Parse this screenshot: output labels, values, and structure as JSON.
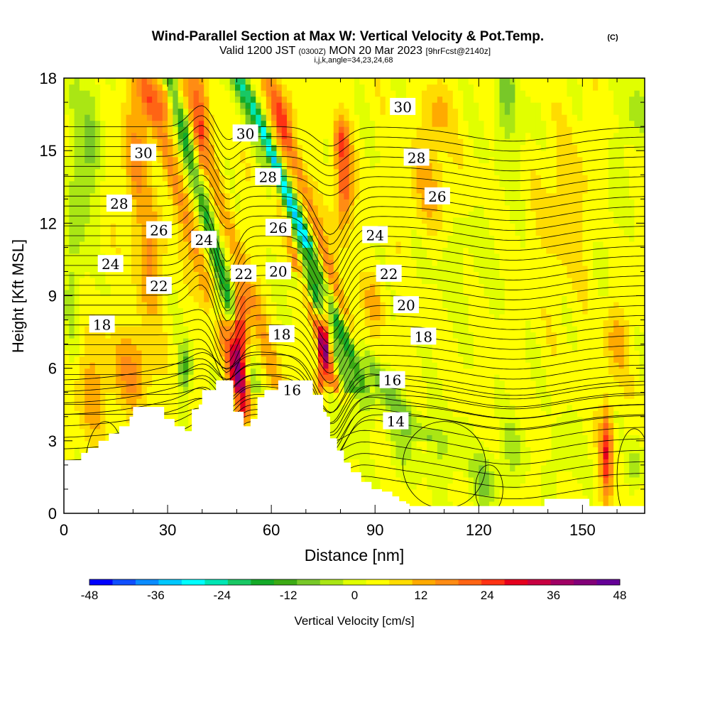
{
  "chart_data": {
    "type": "heatmap",
    "title": "Wind-Parallel Section at Max W: Vertical Velocity & Pot.Temp.",
    "title_unit": "(C)",
    "subtitle": {
      "prefix": "Valid 1200 JST",
      "utc": "(0300Z)",
      "date": "MON 20 Mar 2023",
      "forecast": "[9hrFcst@2140z]"
    },
    "subtitle2": "i,j,k,angle=34,23,24,68",
    "xlabel": "Distance [nm]",
    "ylabel": "Height [Kft MSL]",
    "xlim": [
      0,
      168
    ],
    "ylim": [
      0,
      18
    ],
    "xticks": [
      0,
      30,
      60,
      90,
      120,
      150
    ],
    "yticks": [
      0,
      3,
      6,
      9,
      12,
      15,
      18
    ],
    "colorbar": {
      "label": "Vertical Velocity [cm/s]",
      "ticks": [
        -48,
        -36,
        -24,
        -12,
        0,
        12,
        24,
        36,
        48
      ],
      "colors": [
        "#0000ff",
        "#0f4fff",
        "#0a8cff",
        "#00c8ff",
        "#00ffff",
        "#00e6b4",
        "#19c864",
        "#14aa28",
        "#3caa14",
        "#78c828",
        "#aae614",
        "#e1ff00",
        "#ffff00",
        "#ffdc00",
        "#ffaa00",
        "#ff8c14",
        "#ff6414",
        "#ff3214",
        "#e6001e",
        "#c80041",
        "#a00064",
        "#820078",
        "#640096"
      ]
    },
    "terrain": [
      [
        0,
        2.2
      ],
      [
        5,
        2.5
      ],
      [
        7,
        2.7
      ],
      [
        10,
        3.0
      ],
      [
        13,
        3.3
      ],
      [
        16,
        3.6
      ],
      [
        19,
        4.0
      ],
      [
        20,
        4.4
      ],
      [
        27,
        4.4
      ],
      [
        29,
        3.9
      ],
      [
        32,
        3.6
      ],
      [
        35,
        3.4
      ],
      [
        37,
        4.3
      ],
      [
        39,
        4.5
      ],
      [
        40,
        5.1
      ],
      [
        43,
        5.1
      ],
      [
        44,
        5.5
      ],
      [
        48,
        5.5
      ],
      [
        49,
        4.2
      ],
      [
        52,
        3.6
      ],
      [
        54,
        3.9
      ],
      [
        56,
        4.8
      ],
      [
        57,
        4.8
      ],
      [
        58,
        5.1
      ],
      [
        61,
        5.1
      ],
      [
        62,
        5.5
      ],
      [
        71,
        5.5
      ],
      [
        72,
        4.9
      ],
      [
        74,
        4.9
      ],
      [
        75,
        4.2
      ],
      [
        76,
        4.0
      ],
      [
        77,
        3.1
      ],
      [
        79,
        2.6
      ],
      [
        81,
        2.1
      ],
      [
        83,
        1.7
      ],
      [
        86,
        1.3
      ],
      [
        89,
        1.0
      ],
      [
        92,
        0.9
      ],
      [
        95,
        0.7
      ],
      [
        97,
        0.5
      ],
      [
        99,
        0.4
      ],
      [
        100,
        0.3
      ],
      [
        138,
        0.3
      ],
      [
        139,
        0.6
      ],
      [
        150,
        0.6
      ],
      [
        152,
        0.3
      ],
      [
        168,
        0.3
      ]
    ],
    "w_features": [
      {
        "x": 3,
        "y": 11.5,
        "rx": 3,
        "ry": 6.5,
        "w": -8
      },
      {
        "x": 8,
        "y": 15.5,
        "rx": 3,
        "ry": 3,
        "w": -10
      },
      {
        "x": 7,
        "y": 5.2,
        "rx": 6,
        "ry": 2.2,
        "w": 9
      },
      {
        "x": 20,
        "y": 6.0,
        "rx": 6,
        "ry": 1.6,
        "w": 12
      },
      {
        "x": 25,
        "y": 10.5,
        "rx": 4,
        "ry": 2.2,
        "w": 12
      },
      {
        "x": 21,
        "y": 15.0,
        "rx": 4,
        "ry": 3,
        "w": 11
      },
      {
        "x": 30,
        "y": 17.2,
        "rx": 6,
        "ry": 1,
        "w": 12
      },
      {
        "x": 39,
        "y": 15.5,
        "rx": 2.5,
        "ry": 3,
        "w": 13
      },
      {
        "x": 35,
        "y": 6.0,
        "rx": 1.8,
        "ry": 1.0,
        "w": -16
      },
      {
        "x": 44,
        "y": 8.5,
        "rx": 1.5,
        "ry": 0.8,
        "w": -14
      },
      {
        "x": 51,
        "y": 6.5,
        "rx": 2.6,
        "ry": 1.6,
        "w": 32
      },
      {
        "x": 50.5,
        "y": 8.2,
        "rx": 2.2,
        "ry": 1.2,
        "w": 20
      },
      {
        "x": 52,
        "y": 4.4,
        "rx": 2.0,
        "ry": 0.8,
        "w": 18
      },
      {
        "x": 64,
        "y": 16.5,
        "rx": 3.5,
        "ry": 1.5,
        "w": 10
      },
      {
        "x": 75.5,
        "y": 7.5,
        "rx": 1.8,
        "ry": 1.5,
        "w": 32
      },
      {
        "x": 74.5,
        "y": 5.6,
        "rx": 1.5,
        "ry": 0.8,
        "w": 18
      },
      {
        "x": 81,
        "y": 13.5,
        "rx": 2.5,
        "ry": 1.8,
        "w": 20
      },
      {
        "x": 80,
        "y": 15.5,
        "rx": 2.0,
        "ry": 1.0,
        "w": 14
      },
      {
        "x": 87,
        "y": 5.0,
        "rx": 5,
        "ry": 1.5,
        "w": -8
      },
      {
        "x": 90,
        "y": 8.8,
        "rx": 3,
        "ry": 1.2,
        "w": 8
      },
      {
        "x": 80,
        "y": 2.5,
        "rx": 3,
        "ry": 1.5,
        "w": -5
      },
      {
        "x": 97,
        "y": 3.0,
        "rx": 4,
        "ry": 1.5,
        "w": -6
      },
      {
        "x": 110,
        "y": 2.6,
        "rx": 6,
        "ry": 1.5,
        "w": -6
      },
      {
        "x": 122,
        "y": 1.4,
        "rx": 4,
        "ry": 1.2,
        "w": -10
      },
      {
        "x": 130,
        "y": 2.6,
        "rx": 4,
        "ry": 1.4,
        "w": -6
      },
      {
        "x": 145,
        "y": 2.5,
        "rx": 4,
        "ry": 1.5,
        "w": -5
      },
      {
        "x": 115,
        "y": 10.5,
        "rx": 12,
        "ry": 2.5,
        "w": -3
      },
      {
        "x": 106,
        "y": 13.5,
        "rx": 6,
        "ry": 2,
        "w": 8
      },
      {
        "x": 108,
        "y": 16.5,
        "rx": 4,
        "ry": 1.3,
        "w": 8
      },
      {
        "x": 145,
        "y": 12.5,
        "rx": 8,
        "ry": 3,
        "w": 6
      },
      {
        "x": 160,
        "y": 7.2,
        "rx": 4,
        "ry": 1.5,
        "w": 8
      },
      {
        "x": 128,
        "y": 17.5,
        "rx": 3,
        "ry": 1.5,
        "w": -10
      },
      {
        "x": 130,
        "y": 15.5,
        "rx": 6,
        "ry": 2,
        "w": -4
      },
      {
        "x": 165,
        "y": 16.5,
        "rx": 4,
        "ry": 1.8,
        "w": -7
      },
      {
        "x": 158,
        "y": 12.0,
        "rx": 3,
        "ry": 2.5,
        "w": -4
      },
      {
        "x": 157,
        "y": 2.5,
        "rx": 1.8,
        "ry": 2.0,
        "w": 22
      },
      {
        "x": 165,
        "y": 2.0,
        "rx": 2.0,
        "ry": 1.2,
        "w": -8
      }
    ],
    "contour_labels": [
      {
        "text": "30",
        "x": 23,
        "y": 14.9
      },
      {
        "text": "28",
        "x": 16,
        "y": 12.8
      },
      {
        "text": "26",
        "x": 27.5,
        "y": 11.7
      },
      {
        "text": "24",
        "x": 13.5,
        "y": 10.3
      },
      {
        "text": "22",
        "x": 27.5,
        "y": 9.4
      },
      {
        "text": "18",
        "x": 11,
        "y": 7.8
      },
      {
        "text": "24",
        "x": 40.5,
        "y": 11.3
      },
      {
        "text": "30",
        "x": 52.5,
        "y": 15.7
      },
      {
        "text": "22",
        "x": 52,
        "y": 9.9
      },
      {
        "text": "20",
        "x": 62,
        "y": 10.0
      },
      {
        "text": "28",
        "x": 59,
        "y": 13.9
      },
      {
        "text": "26",
        "x": 62,
        "y": 11.8
      },
      {
        "text": "18",
        "x": 63,
        "y": 7.4
      },
      {
        "text": "16",
        "x": 66,
        "y": 5.1
      },
      {
        "text": "30",
        "x": 98,
        "y": 16.8
      },
      {
        "text": "28",
        "x": 102,
        "y": 14.7
      },
      {
        "text": "26",
        "x": 108,
        "y": 13.1
      },
      {
        "text": "24",
        "x": 90,
        "y": 11.5
      },
      {
        "text": "22",
        "x": 94,
        "y": 9.9
      },
      {
        "text": "20",
        "x": 99,
        "y": 8.6
      },
      {
        "text": "18",
        "x": 104,
        "y": 7.3
      },
      {
        "text": "16",
        "x": 95,
        "y": 5.5
      },
      {
        "text": "14",
        "x": 96,
        "y": 3.8
      }
    ]
  }
}
